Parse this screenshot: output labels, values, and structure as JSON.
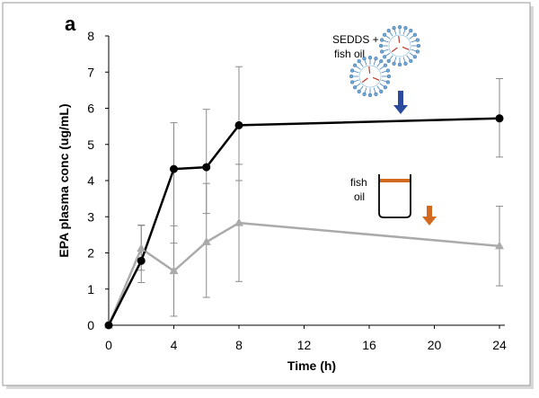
{
  "chart_data": {
    "type": "line",
    "panel_label": "a",
    "xlabel": "Time (h)",
    "ylabel": "EPA plasma conc (ug/mL)",
    "xlim": [
      0,
      24
    ],
    "ylim": [
      0,
      8
    ],
    "x_ticks": [
      0,
      4,
      8,
      12,
      16,
      20,
      24
    ],
    "y_ticks": [
      0,
      1,
      2,
      3,
      4,
      5,
      6,
      7,
      8
    ],
    "grid": false,
    "legend_placement": "top-right",
    "series": [
      {
        "name": "SEDDS + fish oil",
        "color": "#000000",
        "marker": "circle",
        "x": [
          0,
          2,
          4,
          6,
          8,
          24
        ],
        "values": [
          0,
          1.78,
          4.32,
          4.37,
          5.53,
          5.72
        ],
        "err_low": [
          0,
          0.6,
          2.05,
          1.28,
          1.53,
          1.07
        ],
        "err_high": [
          0,
          0.98,
          1.28,
          1.6,
          1.62,
          1.1
        ]
      },
      {
        "name": "fish oil",
        "color": "#aaaaaa",
        "marker": "triangle",
        "x": [
          0,
          2,
          4,
          6,
          8,
          24
        ],
        "values": [
          0,
          2.12,
          1.5,
          2.3,
          2.83,
          2.19
        ],
        "err_low": [
          0,
          0.6,
          1.25,
          1.53,
          1.62,
          1.1
        ],
        "err_high": [
          0,
          0.65,
          1.25,
          1.62,
          1.62,
          1.1
        ]
      }
    ],
    "annotations": {
      "sedds_label_line1": "SEDDS +",
      "sedds_label_line2": "fish oil",
      "oil_label_line1": "fish",
      "oil_label_line2": "oil",
      "sedds_arrow_color": "#2b4a9e",
      "oil_arrow_color": "#d2691e"
    }
  }
}
